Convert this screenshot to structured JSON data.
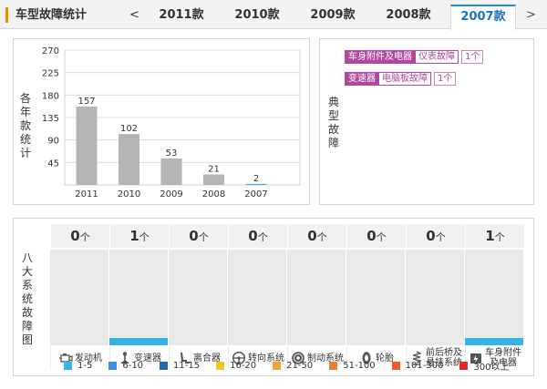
{
  "header": {
    "title": "车型故障统计",
    "prev": "<",
    "next": ">",
    "tabs": [
      {
        "label": "2011款",
        "active": false
      },
      {
        "label": "2010款",
        "active": false
      },
      {
        "label": "2009款",
        "active": false
      },
      {
        "label": "2008款",
        "active": false
      },
      {
        "label": "2007款",
        "active": true
      }
    ]
  },
  "left_panel": {
    "label": [
      "各",
      "年",
      "款",
      "统",
      "计"
    ]
  },
  "chart_data": {
    "type": "bar",
    "categories": [
      "2011",
      "2010",
      "2009",
      "2008",
      "2007"
    ],
    "values": [
      157,
      102,
      53,
      21,
      2
    ],
    "ylim": [
      0,
      270
    ],
    "yticks": [
      45,
      90,
      135,
      180,
      225,
      270
    ],
    "colors": [
      "#b5b5b5",
      "#b5b5b5",
      "#b5b5b5",
      "#b5b5b5",
      "#33b5ec"
    ],
    "grid": true
  },
  "fault_panel": {
    "label": [
      "典",
      "型",
      "故",
      "障"
    ],
    "items": [
      {
        "category": "车身附件及电器",
        "fault": "仪表故障",
        "count": "1个"
      },
      {
        "category": "变速器",
        "fault": "电脑板故障",
        "count": "1个"
      }
    ],
    "tag_color": "#b0489e"
  },
  "systems_panel": {
    "label": [
      "八",
      "大",
      "系",
      "统",
      "故",
      "障",
      "图"
    ],
    "unit": "个",
    "max": 5,
    "bar_color": "#33b5ec",
    "systems": [
      {
        "name": "发动机",
        "count": "0",
        "value": 0,
        "icon": "engine-icon"
      },
      {
        "name": "变速器",
        "count": "1",
        "value": 1,
        "icon": "gear-shift-icon"
      },
      {
        "name": "离合器",
        "count": "0",
        "value": 0,
        "icon": "clutch-pedal-icon"
      },
      {
        "name": "转向系统",
        "count": "0",
        "value": 0,
        "icon": "steering-wheel-icon"
      },
      {
        "name": "制动系统",
        "count": "0",
        "value": 0,
        "icon": "brake-disc-icon"
      },
      {
        "name": "轮胎",
        "count": "0",
        "value": 0,
        "icon": "tire-icon"
      },
      {
        "name": "前后桥及悬挂系统",
        "line1": "前后桥及",
        "line2": "悬挂系统",
        "count": "0",
        "value": 0,
        "icon": "suspension-icon"
      },
      {
        "name": "车身附件及电器",
        "line1": "车身附件",
        "line2": "及电器",
        "count": "1",
        "value": 1,
        "icon": "car-electrical-icon"
      }
    ]
  },
  "legend": [
    {
      "label": "1-5",
      "color": "#33b5ec"
    },
    {
      "label": "6-10",
      "color": "#3d8ee6"
    },
    {
      "label": "11-15",
      "color": "#1f69b8"
    },
    {
      "label": "16-20",
      "color": "#f2c522"
    },
    {
      "label": "21-50",
      "color": "#f5a13a"
    },
    {
      "label": "51-100",
      "color": "#f07d2e"
    },
    {
      "label": "101-300",
      "color": "#ee5a2a"
    },
    {
      "label": "300以上",
      "color": "#e32727"
    }
  ]
}
